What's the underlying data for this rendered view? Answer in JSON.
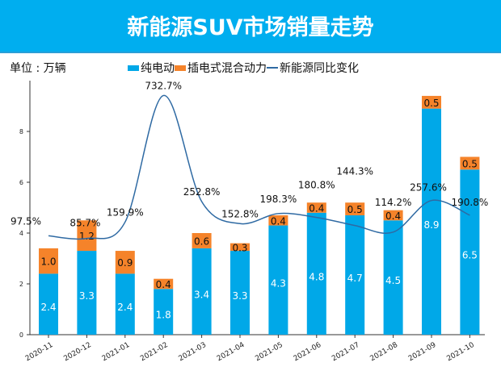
{
  "title": "新能源SUV市场销量走势",
  "unit_label": "单位 : 万辆",
  "colors": {
    "banner": "#00aeef",
    "bev": "#00a8e8",
    "phev": "#f5832a",
    "line": "#2f6aa3"
  },
  "chart_data": {
    "type": "bar",
    "stacked": true,
    "title": "新能源SUV市场销量走势",
    "categories": [
      "2020-11",
      "2020-12",
      "2021-01",
      "2021-02",
      "2021-03",
      "2021-04",
      "2021-05",
      "2021-06",
      "2021-07",
      "2021-08",
      "2021-09",
      "2021-10"
    ],
    "series": [
      {
        "name": "纯电动",
        "type": "bar",
        "values": [
          2.4,
          3.3,
          2.4,
          1.8,
          3.4,
          3.3,
          4.3,
          4.8,
          4.7,
          4.5,
          8.9,
          6.5
        ]
      },
      {
        "name": "插电式混合动力",
        "type": "bar",
        "values": [
          1.0,
          1.2,
          0.9,
          0.4,
          0.6,
          0.3,
          0.4,
          0.4,
          0.5,
          0.4,
          0.5,
          0.5
        ]
      },
      {
        "name": "新能源同比变化",
        "type": "line",
        "smooth": true,
        "axis": "secondary",
        "values": [
          97.5,
          85.7,
          159.9,
          732.7,
          252.8,
          152.8,
          198.3,
          180.8,
          144.3,
          114.2,
          257.6,
          190.8
        ],
        "labels": [
          "97.5%",
          "85.7%",
          "159.9%",
          "732.7%",
          "252.8%",
          "152.8%",
          "198.3%",
          "180.8%",
          "144.3%",
          "114.2%",
          "257.6%",
          "190.8%"
        ]
      }
    ],
    "ylim": [
      0,
      10
    ],
    "yticks": [
      "0",
      "2",
      "4",
      "6",
      "8"
    ],
    "y2lim": [
      -350,
      800
    ],
    "y2_visible": false,
    "grid": false,
    "legend": "top"
  }
}
